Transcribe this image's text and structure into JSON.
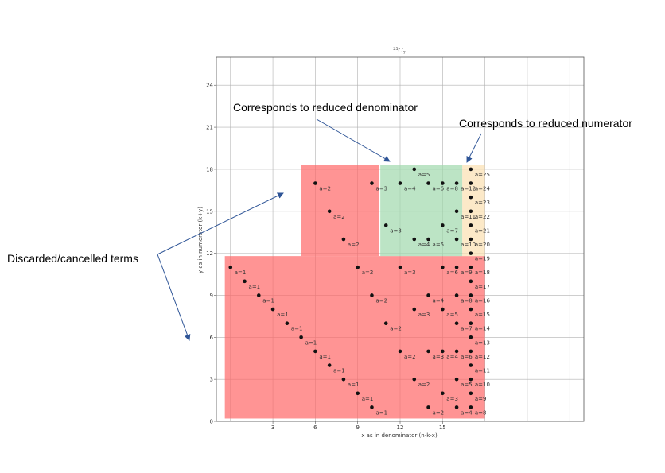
{
  "chart_data": {
    "type": "scatter",
    "title_sup": "25",
    "title_main": "C",
    "title_sub": "7",
    "xlabel": "x as in denominator (n-k-x)",
    "ylabel": "y as in numerator (k+y)",
    "xlim": [
      -1,
      25
    ],
    "ylim": [
      0,
      26
    ],
    "xticks": [
      3,
      6,
      9,
      12,
      15
    ],
    "yticks": [
      0,
      3,
      6,
      9,
      12,
      15,
      18,
      21,
      24
    ],
    "grid": true,
    "regions": [
      {
        "name": "discarded-region-upper",
        "color": "#ff6666",
        "x0": 5,
        "x1": 10.5,
        "y0": 11.8,
        "y1": 18.3
      },
      {
        "name": "discarded-region-lower",
        "color": "#ff6666",
        "x0": -0.4,
        "x1": 18,
        "y0": 0.2,
        "y1": 11.8
      },
      {
        "name": "reduced-denominator-region",
        "color": "#9fd9ac",
        "x0": 10.6,
        "x1": 16.4,
        "y0": 11.8,
        "y1": 18.3
      },
      {
        "name": "reduced-numerator-region",
        "color": "#fbe0b0",
        "x0": 16.4,
        "x1": 18,
        "y0": 11.8,
        "y1": 18.3
      }
    ],
    "points": [
      {
        "x": 0,
        "y": 11,
        "label": "a=1"
      },
      {
        "x": 1,
        "y": 10,
        "label": "a=1"
      },
      {
        "x": 2,
        "y": 9,
        "label": "a=1"
      },
      {
        "x": 3,
        "y": 8,
        "label": "a=1"
      },
      {
        "x": 4,
        "y": 7,
        "label": "a=1"
      },
      {
        "x": 5,
        "y": 6,
        "label": "a=1"
      },
      {
        "x": 6,
        "y": 5,
        "label": "a=1"
      },
      {
        "x": 7,
        "y": 4,
        "label": "a=1"
      },
      {
        "x": 8,
        "y": 3,
        "label": "a=1"
      },
      {
        "x": 9,
        "y": 2,
        "label": "a=1"
      },
      {
        "x": 10,
        "y": 1,
        "label": "a=1"
      },
      {
        "x": 6,
        "y": 17,
        "label": "a=2"
      },
      {
        "x": 7,
        "y": 15,
        "label": "a=2"
      },
      {
        "x": 8,
        "y": 13,
        "label": "a=2"
      },
      {
        "x": 10,
        "y": 17,
        "label": "a=3"
      },
      {
        "x": 9,
        "y": 11,
        "label": "a=2"
      },
      {
        "x": 10,
        "y": 9,
        "label": "a=2"
      },
      {
        "x": 11,
        "y": 7,
        "label": "a=2"
      },
      {
        "x": 12,
        "y": 5,
        "label": "a=2"
      },
      {
        "x": 13,
        "y": 3,
        "label": "a=2"
      },
      {
        "x": 14,
        "y": 1,
        "label": "a=2"
      },
      {
        "x": 12,
        "y": 11,
        "label": "a=3"
      },
      {
        "x": 13,
        "y": 8,
        "label": "a=3"
      },
      {
        "x": 14,
        "y": 5,
        "label": "a=3"
      },
      {
        "x": 15,
        "y": 2,
        "label": "a=3"
      },
      {
        "x": 14,
        "y": 9,
        "label": "a=4"
      },
      {
        "x": 15,
        "y": 5,
        "label": "a=4"
      },
      {
        "x": 16,
        "y": 1,
        "label": "a=4"
      },
      {
        "x": 15,
        "y": 8,
        "label": "a=5"
      },
      {
        "x": 16,
        "y": 3,
        "label": "a=5"
      },
      {
        "x": 15,
        "y": 11,
        "label": "a=6"
      },
      {
        "x": 16,
        "y": 5,
        "label": "a=6"
      },
      {
        "x": 16,
        "y": 7,
        "label": "a=7"
      },
      {
        "x": 16,
        "y": 9,
        "label": "a=8"
      },
      {
        "x": 16,
        "y": 11,
        "label": "a=9"
      },
      {
        "x": 17,
        "y": 1,
        "label": "a=8"
      },
      {
        "x": 17,
        "y": 2,
        "label": "a=9"
      },
      {
        "x": 17,
        "y": 3,
        "label": "a=10"
      },
      {
        "x": 17,
        "y": 4,
        "label": "a=11"
      },
      {
        "x": 17,
        "y": 5,
        "label": "a=12"
      },
      {
        "x": 17,
        "y": 6,
        "label": "a=13"
      },
      {
        "x": 17,
        "y": 7,
        "label": "a=14"
      },
      {
        "x": 17,
        "y": 8,
        "label": "a=15"
      },
      {
        "x": 17,
        "y": 9,
        "label": "a=16"
      },
      {
        "x": 17,
        "y": 10,
        "label": "a=17"
      },
      {
        "x": 17,
        "y": 11,
        "label": "a=18"
      },
      {
        "x": 17,
        "y": 12,
        "label": "a=19"
      },
      {
        "x": 13,
        "y": 18,
        "label": "a=5"
      },
      {
        "x": 12,
        "y": 17,
        "label": "a=4"
      },
      {
        "x": 14,
        "y": 17,
        "label": "a=6"
      },
      {
        "x": 15,
        "y": 17,
        "label": "a=8"
      },
      {
        "x": 16,
        "y": 17,
        "label": "a=12"
      },
      {
        "x": 11,
        "y": 14,
        "label": "a=3"
      },
      {
        "x": 13,
        "y": 13,
        "label": "a=4"
      },
      {
        "x": 14,
        "y": 13,
        "label": "a=5"
      },
      {
        "x": 15,
        "y": 14,
        "label": "a=7"
      },
      {
        "x": 16,
        "y": 15,
        "label": "a=11"
      },
      {
        "x": 16,
        "y": 13,
        "label": "a=10"
      },
      {
        "x": 17,
        "y": 13,
        "label": "a=20"
      },
      {
        "x": 17,
        "y": 14,
        "label": "a=21"
      },
      {
        "x": 17,
        "y": 15,
        "label": "a=22"
      },
      {
        "x": 17,
        "y": 16,
        "label": "a=23"
      },
      {
        "x": 17,
        "y": 17,
        "label": "a=24"
      },
      {
        "x": 17,
        "y": 18,
        "label": "a=25"
      }
    ]
  },
  "annotations": [
    {
      "name": "annotation-reduced-denominator",
      "text": "Corresponds to reduced denominator"
    },
    {
      "name": "annotation-reduced-numerator",
      "text": "Corresponds to reduced numerator"
    },
    {
      "name": "annotation-discarded",
      "text": "Discarded/cancelled terms"
    }
  ],
  "colors": {
    "arrow": "#2f5597",
    "grid": "#b0b0b0",
    "point": "#111111"
  }
}
